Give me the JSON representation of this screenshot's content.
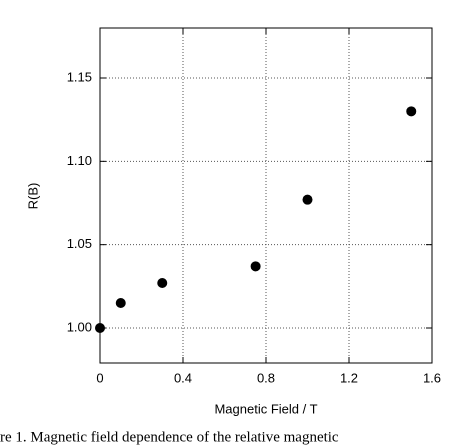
{
  "chart_data": {
    "type": "scatter",
    "x_label": "Magnetic Field / T",
    "y_label": "R(B)",
    "caption": "re 1.  Magnetic field dependence of the relative magnetic",
    "x": [
      0,
      0.1,
      0.3,
      0.75,
      1.0,
      1.5
    ],
    "values": [
      1.0,
      1.015,
      1.027,
      1.037,
      1.077,
      1.13
    ],
    "color": "#000000",
    "xlim": [
      0,
      1.6
    ],
    "xticks": [
      0,
      0.4,
      0.8,
      1.2,
      1.6
    ],
    "ylim": [
      0.979,
      1.18
    ],
    "yticks": [
      {
        "value": 1,
        "label": "1.00"
      },
      1.05,
      {
        "value": 1.1,
        "label": "1.10"
      },
      1.15
    ],
    "grid": true
  }
}
